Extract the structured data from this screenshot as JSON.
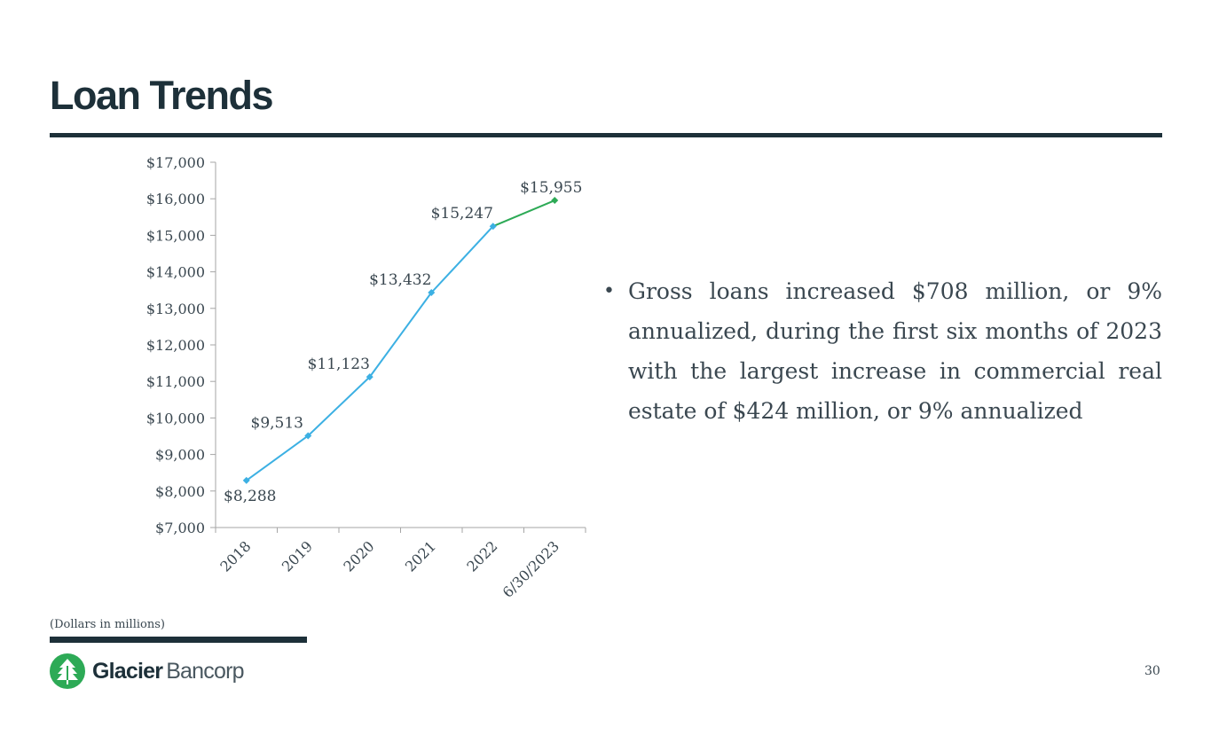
{
  "slide": {
    "title": "Loan Trends",
    "bullet": "Gross loans increased $708 million, or 9% annualized, during the first six months of 2023 with the largest increase in commercial real estate of $424 million, or 9% annualized",
    "footnote": "(Dollars in millions)",
    "page_number": "30"
  },
  "logo": {
    "name_bold": "Glacier",
    "name_light": "Bancorp",
    "brand_color": "#2daa56"
  },
  "chart_data": {
    "type": "line",
    "categories": [
      "2018",
      "2019",
      "2020",
      "2021",
      "2022",
      "6/30/2023"
    ],
    "values": [
      8288,
      9513,
      11123,
      13432,
      15247,
      15955
    ],
    "data_labels": [
      "$8,288",
      "$9,513",
      "$11,123",
      "$13,432",
      "$15,247",
      "$15,955"
    ],
    "ylim": [
      7000,
      17000
    ],
    "y_ticks": [
      7000,
      8000,
      9000,
      10000,
      11000,
      12000,
      13000,
      14000,
      15000,
      16000,
      17000
    ],
    "y_tick_labels": [
      "$7,000",
      "$8,000",
      "$9,000",
      "$10,000",
      "$11,000",
      "$12,000",
      "$13,000",
      "$14,000",
      "$15,000",
      "$16,000",
      "$17,000"
    ],
    "line_color": "#3cb0e3",
    "last_segment_color": "#2daa56",
    "grid": false,
    "legend": "none"
  }
}
